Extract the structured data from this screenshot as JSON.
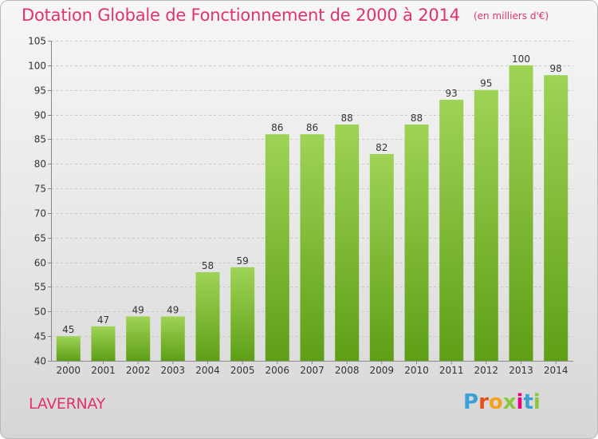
{
  "header": {
    "title": "Dotation Globale de Fonctionnement de 2000 à 2014",
    "subtitle": "(en milliers d'€)"
  },
  "footer": {
    "commune": "LAVERNAY",
    "logo_text": "Proxiti"
  },
  "colors": {
    "title": "#e0336e",
    "bar_top": "#9fd356",
    "bar_bottom": "#5e9f16",
    "gridline": "#c8c8c8",
    "axis_text": "#333333"
  },
  "chart_data": {
    "type": "bar",
    "title": "Dotation Globale de Fonctionnement de 2000 à 2014",
    "subtitle": "(en milliers d'€)",
    "xlabel": "",
    "ylabel": "",
    "categories": [
      "2000",
      "2001",
      "2002",
      "2003",
      "2004",
      "2005",
      "2006",
      "2007",
      "2008",
      "2009",
      "2010",
      "2011",
      "2012",
      "2013",
      "2014"
    ],
    "values": [
      45,
      47,
      49,
      49,
      58,
      59,
      86,
      86,
      88,
      82,
      88,
      93,
      95,
      100,
      98
    ],
    "ylim": [
      40,
      105
    ],
    "yticks": [
      40,
      45,
      50,
      55,
      60,
      65,
      70,
      75,
      80,
      85,
      90,
      95,
      100,
      105
    ],
    "grid": true,
    "data_labels": true
  }
}
